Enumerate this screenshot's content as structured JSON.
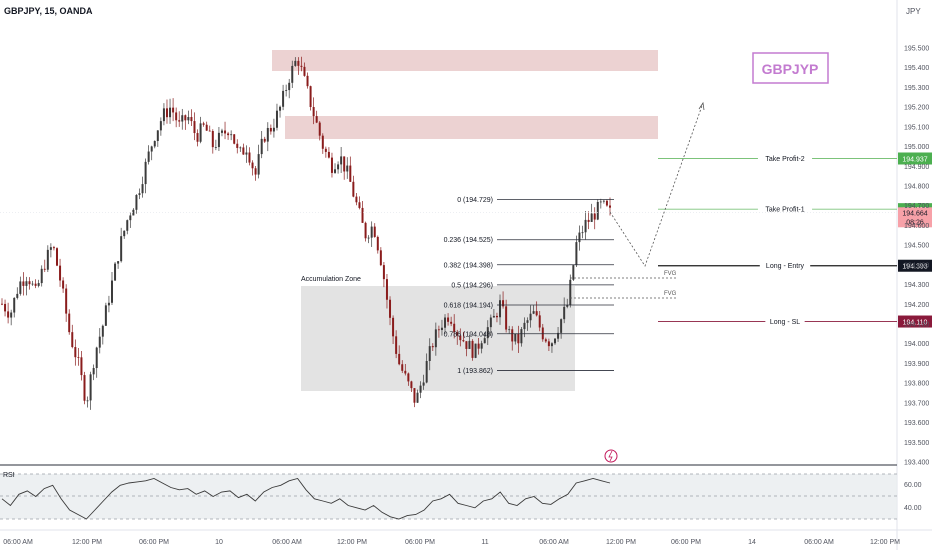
{
  "header": {
    "symbol": "GBPJPY, 15, OANDA",
    "currency": "JPY"
  },
  "badge": {
    "text": "GBPJYP",
    "color": "#c37bd0"
  },
  "colors": {
    "up": "#3b3b3b",
    "down": "#8a1c1c",
    "zone": "#e6c3c3",
    "accumulation": "#d9d9d9",
    "tp": "#7cc37a",
    "tp_label": "#4caf50",
    "sl": "#8a1a3b",
    "current": "#f7a1a8",
    "rsi_line": "#3a3a3a",
    "rsi_band": "#e8ecef"
  },
  "annotations": {
    "accumulation_zone": "Accumulation Zone",
    "fvg": "FVG",
    "fib_levels": [
      {
        "label": "0 (194.729)",
        "price": 194.729
      },
      {
        "label": "0.236 (194.525)",
        "price": 194.525
      },
      {
        "label": "0.382 (194.398)",
        "price": 194.398
      },
      {
        "label": "0.5 (194.296)",
        "price": 194.296
      },
      {
        "label": "0.618 (194.194)",
        "price": 194.194
      },
      {
        "label": "0.786 (194.048)",
        "price": 194.048
      },
      {
        "label": "1 (193.862)",
        "price": 193.862
      }
    ],
    "trade_lines": [
      {
        "label": "Take Profit-2",
        "price": 194.937,
        "tag": "194.937",
        "kind": "tp"
      },
      {
        "label": "Take Profit-1",
        "price": 194.68,
        "tag": "194.680",
        "kind": "tp"
      },
      {
        "label": "Long - Entry",
        "price": 194.393,
        "tag": "194.393",
        "kind": "entry"
      },
      {
        "label": "Long - SL",
        "price": 194.11,
        "tag": "194.110",
        "kind": "sl"
      }
    ],
    "current_price": {
      "price": "194.664",
      "countdown": "08:26"
    }
  },
  "rsi": {
    "label": "RSI",
    "ticks": [
      "60.00",
      "40.00"
    ],
    "upper": 70,
    "lower": 30
  },
  "chart_data": {
    "type": "candlestick",
    "title": "GBPJPY, 15, OANDA",
    "ylim": [
      193.4,
      195.6
    ],
    "yticks": [
      "195.500",
      "195.400",
      "195.300",
      "195.200",
      "195.100",
      "195.000",
      "194.900",
      "194.800",
      "194.700",
      "194.600",
      "194.500",
      "194.400",
      "194.300",
      "194.200",
      "194.100",
      "194.000",
      "193.900",
      "193.800",
      "193.700",
      "193.600",
      "193.500",
      "193.400"
    ],
    "xticks": [
      "06:00 AM",
      "12:00 PM",
      "06:00 PM",
      "10",
      "06:00 AM",
      "12:00 PM",
      "06:00 PM",
      "11",
      "06:00 AM",
      "12:00 PM",
      "06:00 PM",
      "14",
      "06:00 AM",
      "12:00 PM"
    ],
    "close_path": [
      194.2,
      194.15,
      194.3,
      194.35,
      194.25,
      194.4,
      194.5,
      194.3,
      194.05,
      193.9,
      193.7,
      193.95,
      194.1,
      194.3,
      194.5,
      194.65,
      194.75,
      194.9,
      195.05,
      195.15,
      195.2,
      195.1,
      195.15,
      195.05,
      195.1,
      195.0,
      195.05,
      195.1,
      194.95,
      195.0,
      194.85,
      195.05,
      195.1,
      195.2,
      195.35,
      195.45,
      195.3,
      195.15,
      195.0,
      194.9,
      194.95,
      194.85,
      194.7,
      194.55,
      194.6,
      194.4,
      194.1,
      193.9,
      193.8,
      193.7,
      193.85,
      194.0,
      194.1,
      194.15,
      194.05,
      194.0,
      193.95,
      194.05,
      194.1,
      194.2,
      194.05,
      194.0,
      194.1,
      194.15,
      194.05,
      194.0,
      194.1,
      194.2,
      194.5,
      194.6,
      194.65,
      194.7,
      194.66
    ],
    "rsi_values": [
      48,
      42,
      52,
      55,
      50,
      57,
      60,
      48,
      38,
      34,
      30,
      38,
      46,
      54,
      60,
      62,
      63,
      64,
      66,
      62,
      58,
      56,
      57,
      52,
      55,
      50,
      54,
      55,
      49,
      52,
      46,
      54,
      58,
      60,
      64,
      66,
      56,
      48,
      46,
      44,
      48,
      42,
      40,
      38,
      42,
      36,
      32,
      30,
      33,
      34,
      38,
      46,
      48,
      52,
      44,
      42,
      40,
      46,
      48,
      54,
      44,
      42,
      48,
      50,
      44,
      43,
      48,
      52,
      62,
      64,
      66,
      64,
      62
    ]
  }
}
